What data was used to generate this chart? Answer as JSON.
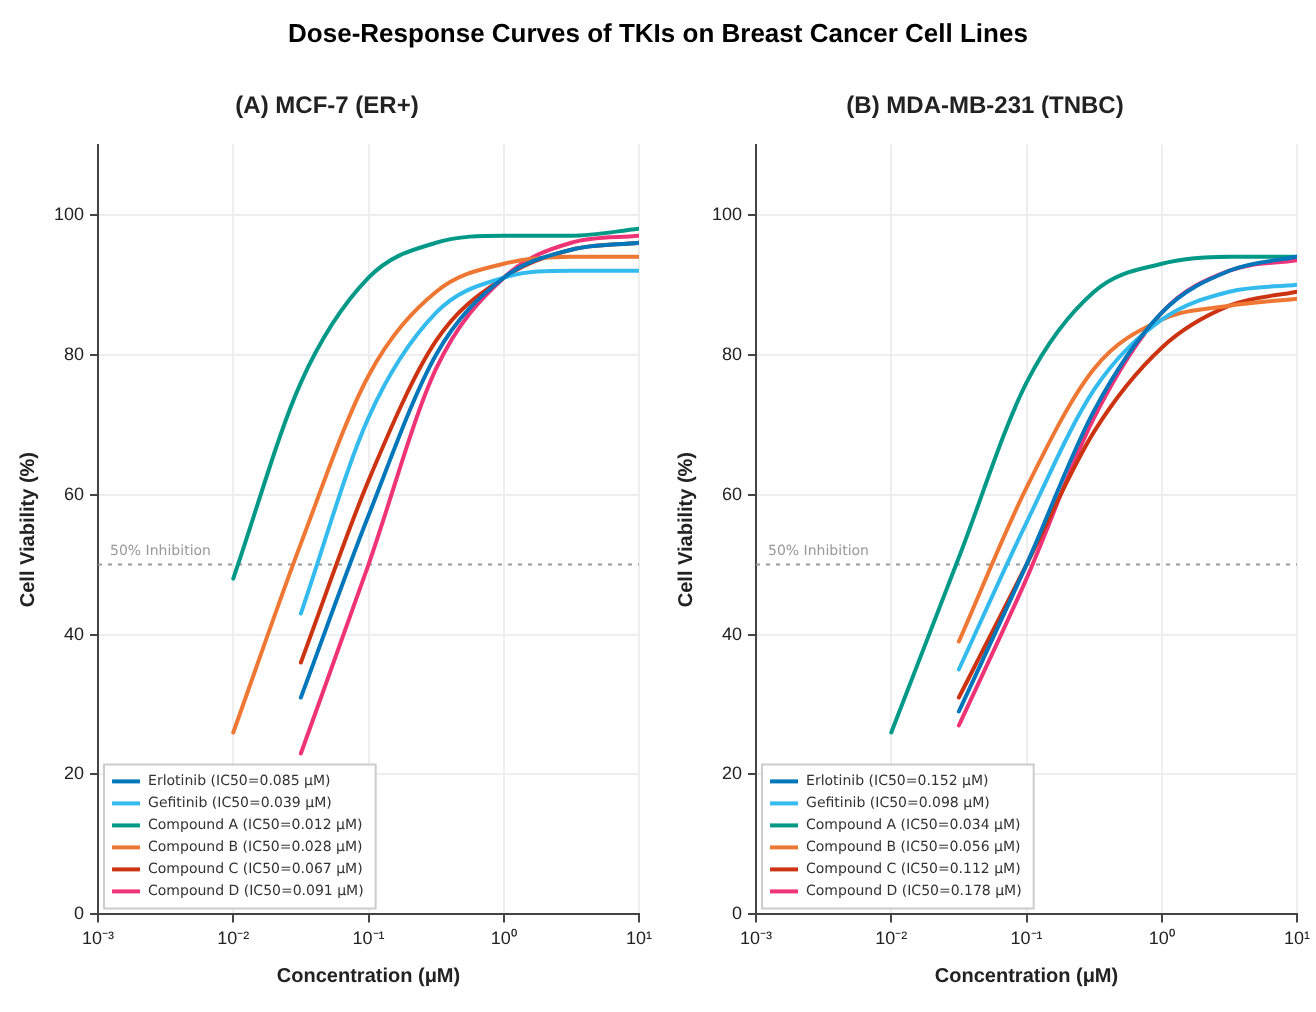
{
  "chart_data": [
    {
      "type": "line",
      "title": "Dose-Response Curves of TKIs on Breast Cancer Cell Lines",
      "subtitle": "(A) MCF-7 (ER+)",
      "xlabel": "Concentration (μM)",
      "ylabel": "Cell Viability (%)",
      "x": [
        0.01,
        0.0316,
        0.1,
        0.316,
        1,
        3.16,
        10
      ],
      "log": "x",
      "xlim": [
        0.001,
        10
      ],
      "ylim": [
        0,
        110
      ],
      "xticks": [
        {
          "value": 0.001,
          "label": "10⁻³"
        },
        {
          "value": 0.01,
          "label": "10⁻²"
        },
        {
          "value": 0.1,
          "label": "10⁻¹"
        },
        {
          "value": 1,
          "label": "10⁰"
        },
        {
          "value": 10,
          "label": "10¹"
        }
      ],
      "yticks": [
        0,
        20,
        40,
        60,
        80,
        100
      ],
      "grid": true,
      "legend": "bottom left",
      "marker": "none",
      "line_style": "solid",
      "ref_lines": [
        {
          "axis": "y",
          "value": 50,
          "label": "50% Inhibition",
          "color": "#999999",
          "line_style": "dotted"
        }
      ],
      "series": [
        {
          "name": "Erlotinib (IC50=0.085 μM)",
          "color": "#0077bb",
          "values": [
            null,
            31,
            57,
            80,
            91,
            95,
            96
          ]
        },
        {
          "name": "Gefitinib (IC50=0.039 μM)",
          "color": "#33bbee",
          "values": [
            null,
            43,
            71,
            86,
            91,
            92,
            92
          ]
        },
        {
          "name": "Compound A (IC50=0.012 μM)",
          "color": "#009988",
          "values": [
            48,
            76,
            91,
            96,
            97,
            97,
            98
          ]
        },
        {
          "name": "Compound B (IC50=0.028 μM)",
          "color": "#ee7733",
          "values": [
            26,
            53,
            77,
            89,
            93,
            94,
            94
          ]
        },
        {
          "name": "Compound C (IC50=0.067 μM)",
          "color": "#cc3311",
          "values": [
            null,
            36,
            62,
            82,
            91,
            95,
            96
          ]
        },
        {
          "name": "Compound D (IC50=0.091 μM)",
          "color": "#ee3377",
          "values": [
            null,
            23,
            50,
            78,
            91,
            96,
            97
          ]
        }
      ]
    },
    {
      "type": "line",
      "subtitle": "(B) MDA-MB-231 (TNBC)",
      "xlabel": "Concentration (μM)",
      "ylabel": "Cell Viability (%)",
      "x": [
        0.01,
        0.0316,
        0.1,
        0.316,
        1,
        3.16,
        10
      ],
      "log": "x",
      "xlim": [
        0.001,
        10
      ],
      "ylim": [
        0,
        110
      ],
      "xticks": [
        {
          "value": 0.001,
          "label": "10⁻³"
        },
        {
          "value": 0.01,
          "label": "10⁻²"
        },
        {
          "value": 0.1,
          "label": "10⁻¹"
        },
        {
          "value": 1,
          "label": "10⁰"
        },
        {
          "value": 10,
          "label": "10¹"
        }
      ],
      "yticks": [
        0,
        20,
        40,
        60,
        80,
        100
      ],
      "grid": true,
      "legend": "bottom left",
      "marker": "none",
      "line_style": "solid",
      "ref_lines": [
        {
          "axis": "y",
          "value": 50,
          "label": "50% Inhibition",
          "color": "#999999",
          "line_style": "dotted"
        }
      ],
      "series": [
        {
          "name": "Erlotinib (IC50=0.152 μM)",
          "color": "#0077bb",
          "values": [
            null,
            29,
            50,
            72,
            86,
            92,
            94
          ]
        },
        {
          "name": "Gefitinib (IC50=0.098 μM)",
          "color": "#33bbee",
          "values": [
            null,
            35,
            56,
            75,
            85,
            89,
            90
          ]
        },
        {
          "name": "Compound A (IC50=0.034 μM)",
          "color": "#009988",
          "values": [
            26,
            51,
            76,
            89,
            93,
            94,
            94
          ]
        },
        {
          "name": "Compound B (IC50=0.056 μM)",
          "color": "#ee7733",
          "values": [
            null,
            39,
            61,
            78,
            85,
            87,
            88
          ]
        },
        {
          "name": "Compound C (IC50=0.112 μM)",
          "color": "#cc3311",
          "values": [
            null,
            31,
            50,
            69,
            81,
            87,
            89
          ]
        },
        {
          "name": "Compound D (IC50=0.178 μM)",
          "color": "#ee3377",
          "values": [
            null,
            27,
            48,
            71,
            86,
            92,
            93.5
          ]
        }
      ]
    }
  ]
}
